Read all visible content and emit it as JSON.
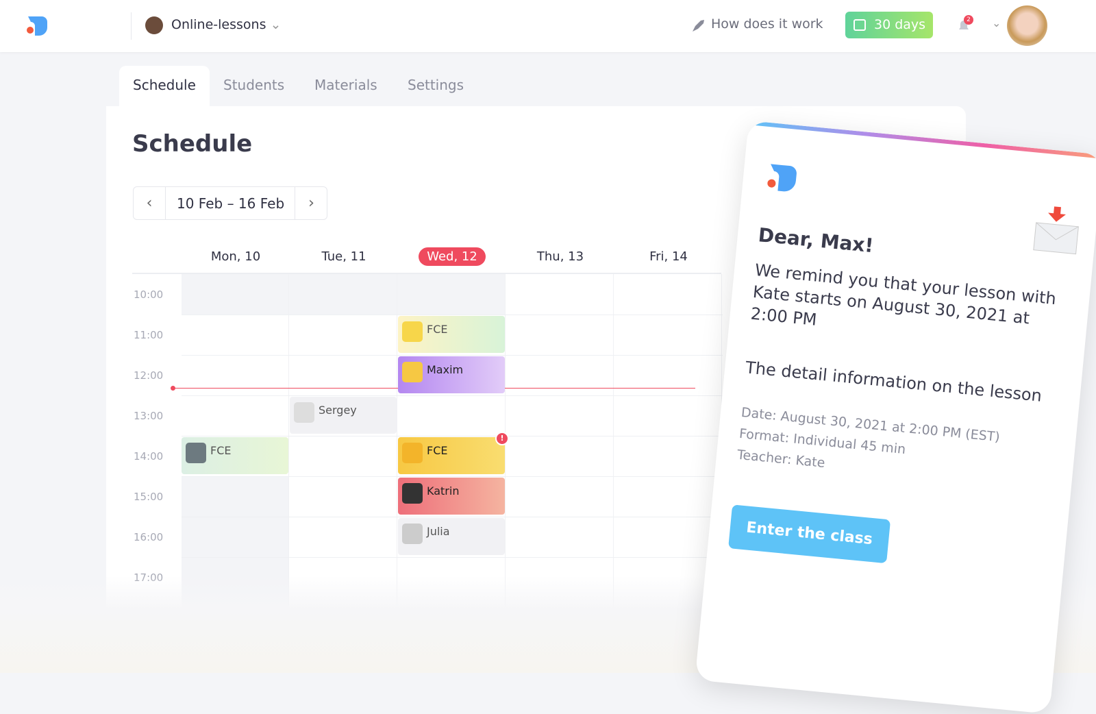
{
  "header": {
    "workspace": "Online-lessons",
    "help": "How does it work",
    "trial": "30 days",
    "notifications": "2"
  },
  "tabs": [
    "Schedule",
    "Students",
    "Materials",
    "Settings"
  ],
  "page_title": "Schedule",
  "date_range": "10 Feb – 16 Feb",
  "days": [
    "Mon, 10",
    "Tue, 11",
    "Wed, 12",
    "Thu, 13",
    "Fri, 14"
  ],
  "times": [
    "10:00",
    "11:00",
    "12:00",
    "13:00",
    "14:00",
    "15:00",
    "16:00",
    "17:00"
  ],
  "events": [
    "FCE",
    "Maxim",
    "Sergey",
    "FCE",
    "FCE",
    "Katrin",
    "Julia"
  ],
  "email": {
    "greeting": "Dear, Max!",
    "body": "We remind you that your lesson with Kate starts on August 30, 2021 at 2:00 PM",
    "subtitle": "The detail information on the lesson",
    "details": [
      "Date: August 30, 2021 at 2:00 PM (EST)",
      "Format: Individual 45 min",
      "Teacher: Kate"
    ],
    "button": "Enter the class"
  }
}
